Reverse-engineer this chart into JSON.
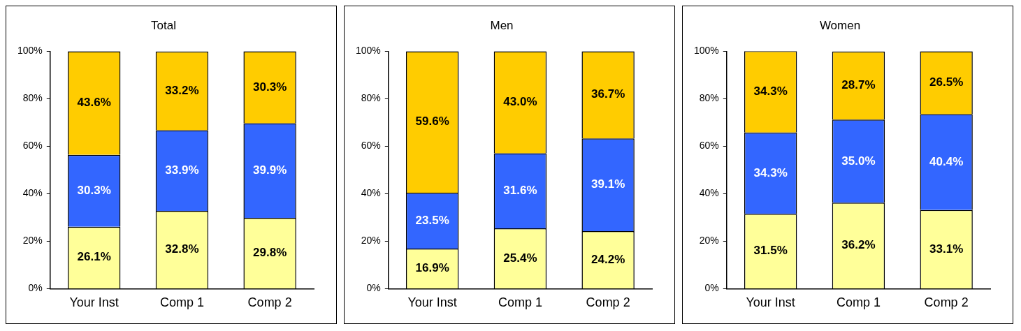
{
  "chart_data": [
    {
      "type": "bar",
      "title": "Total",
      "categories": [
        "Your Inst",
        "Comp 1",
        "Comp 2"
      ],
      "stacked": true,
      "ylim": [
        0,
        100
      ],
      "yticks": [
        {
          "value": 0,
          "label": "0%"
        },
        {
          "value": 20,
          "label": "20%"
        },
        {
          "value": 40,
          "label": "40%"
        },
        {
          "value": 60,
          "label": "60%"
        },
        {
          "value": 80,
          "label": "80%"
        },
        {
          "value": 100,
          "label": "100%"
        }
      ],
      "grid": false,
      "legend": false,
      "series": [
        {
          "color": "#ffff99",
          "values": [
            26.1,
            32.8,
            29.8
          ],
          "value_labels": [
            "26.1%",
            "32.8%",
            "29.8%"
          ]
        },
        {
          "color": "#3366ff",
          "values": [
            30.3,
            33.9,
            39.9
          ],
          "value_labels": [
            "30.3%",
            "33.9%",
            "39.9%"
          ]
        },
        {
          "color": "#ffcc00",
          "values": [
            43.6,
            33.2,
            30.3
          ],
          "value_labels": [
            "43.6%",
            "33.2%",
            "30.3%"
          ]
        }
      ]
    },
    {
      "type": "bar",
      "title": "Men",
      "categories": [
        "Your Inst",
        "Comp 1",
        "Comp 2"
      ],
      "stacked": true,
      "ylim": [
        0,
        100
      ],
      "yticks": [
        {
          "value": 0,
          "label": "0%"
        },
        {
          "value": 20,
          "label": "20%"
        },
        {
          "value": 40,
          "label": "40%"
        },
        {
          "value": 60,
          "label": "60%"
        },
        {
          "value": 80,
          "label": "80%"
        },
        {
          "value": 100,
          "label": "100%"
        }
      ],
      "grid": false,
      "legend": false,
      "series": [
        {
          "color": "#ffff99",
          "values": [
            16.9,
            25.4,
            24.2
          ],
          "value_labels": [
            "16.9%",
            "25.4%",
            "24.2%"
          ]
        },
        {
          "color": "#3366ff",
          "values": [
            23.5,
            31.6,
            39.1
          ],
          "value_labels": [
            "23.5%",
            "31.6%",
            "39.1%"
          ]
        },
        {
          "color": "#ffcc00",
          "values": [
            59.6,
            43.0,
            36.7
          ],
          "value_labels": [
            "59.6%",
            "43.0%",
            "36.7%"
          ]
        }
      ]
    },
    {
      "type": "bar",
      "title": "Women",
      "categories": [
        "Your Inst",
        "Comp 1",
        "Comp 2"
      ],
      "stacked": true,
      "ylim": [
        0,
        100
      ],
      "yticks": [
        {
          "value": 0,
          "label": "0%"
        },
        {
          "value": 20,
          "label": "20%"
        },
        {
          "value": 40,
          "label": "40%"
        },
        {
          "value": 60,
          "label": "60%"
        },
        {
          "value": 80,
          "label": "80%"
        },
        {
          "value": 100,
          "label": "100%"
        }
      ],
      "grid": false,
      "legend": false,
      "series": [
        {
          "color": "#ffff99",
          "values": [
            31.5,
            36.2,
            33.1
          ],
          "value_labels": [
            "31.5%",
            "36.2%",
            "33.1%"
          ]
        },
        {
          "color": "#3366ff",
          "values": [
            34.3,
            35.0,
            40.4
          ],
          "value_labels": [
            "34.3%",
            "35.0%",
            "40.4%"
          ]
        },
        {
          "color": "#ffcc00",
          "values": [
            34.3,
            28.7,
            26.5
          ],
          "value_labels": [
            "34.3%",
            "28.7%",
            "26.5%"
          ]
        }
      ]
    }
  ]
}
